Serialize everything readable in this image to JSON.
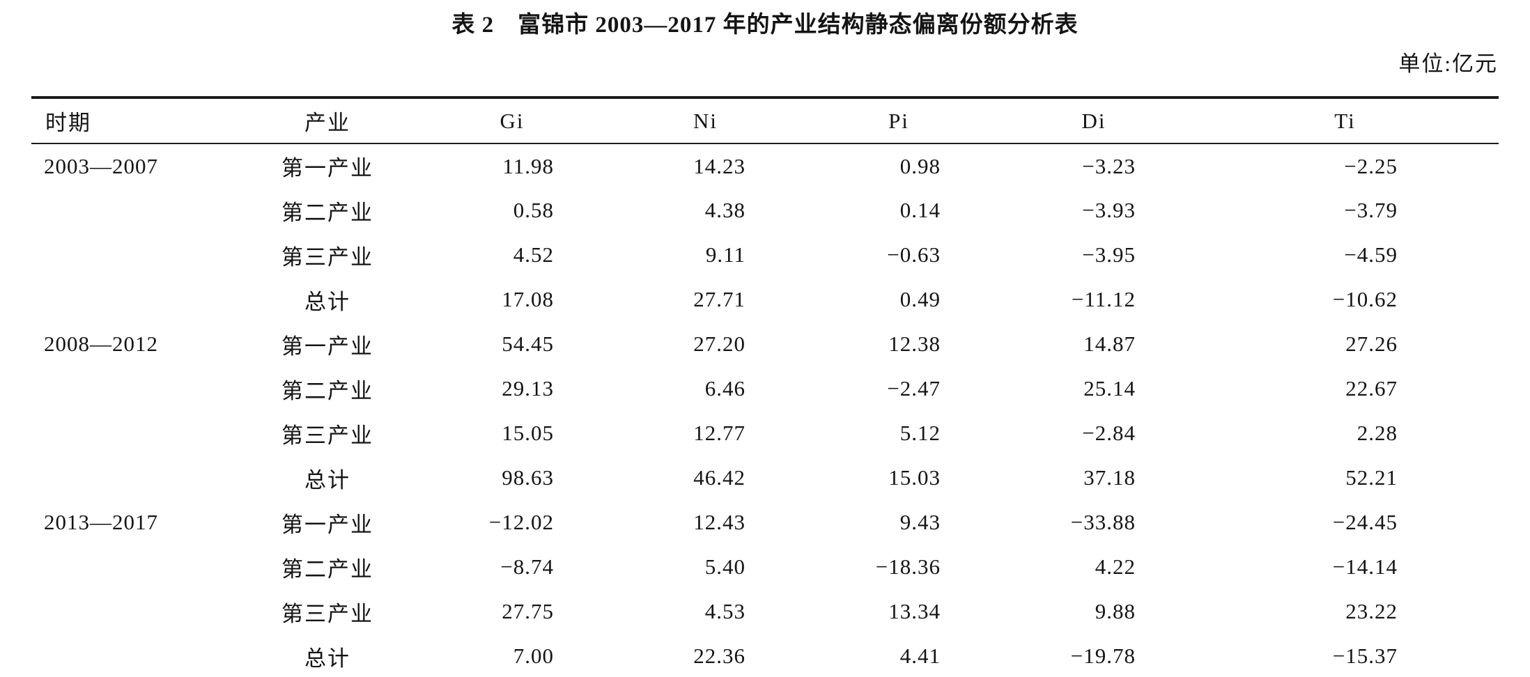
{
  "title": "表 2　富锦市 2003—2017 年的产业结构静态偏离份额分析表",
  "unit_label": "单位:亿元",
  "table": {
    "headers": [
      "时期",
      "产业",
      "Gi",
      "Ni",
      "Pi",
      "Di",
      "Ti"
    ],
    "rows": [
      {
        "period": "2003—2007",
        "industry": "第一产业",
        "values": [
          "11.98",
          "14.23",
          "0.98",
          "−3.23",
          "−2.25"
        ]
      },
      {
        "period": "",
        "industry": "第二产业",
        "values": [
          "0.58",
          "4.38",
          "0.14",
          "−3.93",
          "−3.79"
        ]
      },
      {
        "period": "",
        "industry": "第三产业",
        "values": [
          "4.52",
          "9.11",
          "−0.63",
          "−3.95",
          "−4.59"
        ]
      },
      {
        "period": "",
        "industry": "总计",
        "values": [
          "17.08",
          "27.71",
          "0.49",
          "−11.12",
          "−10.62"
        ]
      },
      {
        "period": "2008—2012",
        "industry": "第一产业",
        "values": [
          "54.45",
          "27.20",
          "12.38",
          "14.87",
          "27.26"
        ]
      },
      {
        "period": "",
        "industry": "第二产业",
        "values": [
          "29.13",
          "6.46",
          "−2.47",
          "25.14",
          "22.67"
        ]
      },
      {
        "period": "",
        "industry": "第三产业",
        "values": [
          "15.05",
          "12.77",
          "5.12",
          "−2.84",
          "2.28"
        ]
      },
      {
        "period": "",
        "industry": "总计",
        "values": [
          "98.63",
          "46.42",
          "15.03",
          "37.18",
          "52.21"
        ]
      },
      {
        "period": "2013—2017",
        "industry": "第一产业",
        "values": [
          "−12.02",
          "12.43",
          "9.43",
          "−33.88",
          "−24.45"
        ]
      },
      {
        "period": "",
        "industry": "第二产业",
        "values": [
          "−8.74",
          "5.40",
          "−18.36",
          "4.22",
          "−14.14"
        ]
      },
      {
        "period": "",
        "industry": "第三产业",
        "values": [
          "27.75",
          "4.53",
          "13.34",
          "9.88",
          "23.22"
        ]
      },
      {
        "period": "",
        "industry": "总计",
        "values": [
          "7.00",
          "22.36",
          "4.41",
          "−19.78",
          "−15.37"
        ]
      }
    ]
  },
  "chart_data": {
    "type": "table",
    "title": "表 2 富锦市 2003—2017 年的产业结构静态偏离份额分析表",
    "unit": "亿元",
    "columns": [
      "时期",
      "产业",
      "Gi",
      "Ni",
      "Pi",
      "Di",
      "Ti"
    ],
    "rows": [
      [
        "2003—2007",
        "第一产业",
        11.98,
        14.23,
        0.98,
        -3.23,
        -2.25
      ],
      [
        "2003—2007",
        "第二产业",
        0.58,
        4.38,
        0.14,
        -3.93,
        -3.79
      ],
      [
        "2003—2007",
        "第三产业",
        4.52,
        9.11,
        -0.63,
        -3.95,
        -4.59
      ],
      [
        "2003—2007",
        "总计",
        17.08,
        27.71,
        0.49,
        -11.12,
        -10.62
      ],
      [
        "2008—2012",
        "第一产业",
        54.45,
        27.2,
        12.38,
        14.87,
        27.26
      ],
      [
        "2008—2012",
        "第二产业",
        29.13,
        6.46,
        -2.47,
        25.14,
        22.67
      ],
      [
        "2008—2012",
        "第三产业",
        15.05,
        12.77,
        5.12,
        -2.84,
        2.28
      ],
      [
        "2008—2012",
        "总计",
        98.63,
        46.42,
        15.03,
        37.18,
        52.21
      ],
      [
        "2013—2017",
        "第一产业",
        -12.02,
        12.43,
        9.43,
        -33.88,
        -24.45
      ],
      [
        "2013—2017",
        "第二产业",
        -8.74,
        5.4,
        -18.36,
        4.22,
        -14.14
      ],
      [
        "2013—2017",
        "第三产业",
        27.75,
        4.53,
        13.34,
        9.88,
        23.22
      ],
      [
        "2013—2017",
        "总计",
        7.0,
        22.36,
        4.41,
        -19.78,
        -15.37
      ]
    ]
  }
}
